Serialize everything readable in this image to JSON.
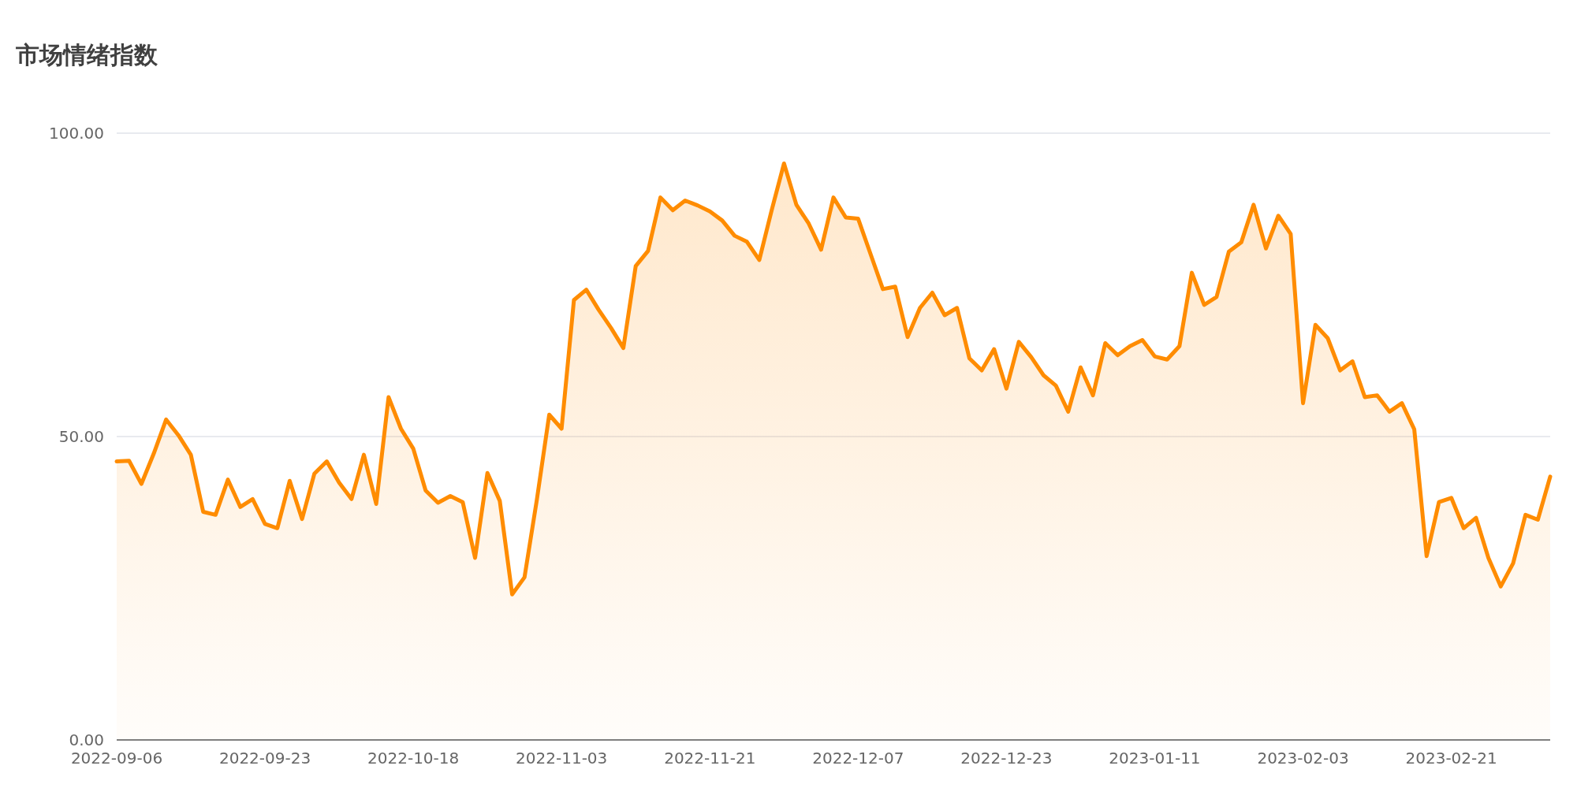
{
  "chart_data": {
    "type": "area",
    "title": "市场情绪指数",
    "categories": [
      "2022-09-06",
      null,
      null,
      null,
      null,
      null,
      null,
      null,
      null,
      null,
      null,
      null,
      "2022-09-23",
      null,
      null,
      null,
      null,
      null,
      null,
      null,
      null,
      null,
      null,
      null,
      "2022-10-18",
      null,
      null,
      null,
      null,
      null,
      null,
      null,
      null,
      null,
      null,
      null,
      "2022-11-03",
      null,
      null,
      null,
      null,
      null,
      null,
      null,
      null,
      null,
      null,
      null,
      "2022-11-21",
      null,
      null,
      null,
      null,
      null,
      null,
      null,
      null,
      null,
      null,
      null,
      "2022-12-07",
      null,
      null,
      null,
      null,
      null,
      null,
      null,
      null,
      null,
      null,
      null,
      "2022-12-23",
      null,
      null,
      null,
      null,
      null,
      null,
      null,
      null,
      null,
      null,
      null,
      "2023-01-11",
      null,
      null,
      null,
      null,
      null,
      null,
      null,
      null,
      null,
      null,
      null,
      "2023-02-03",
      null,
      null,
      null,
      null,
      null,
      null,
      null,
      null,
      null,
      null,
      null,
      "2023-02-21",
      null,
      null,
      null,
      null,
      null,
      null,
      null,
      null
    ],
    "series": [
      {
        "color": "#ff8c00",
        "values": [
          45.9,
          46.0,
          42.2,
          47.2,
          52.8,
          50.2,
          47.0,
          37.6,
          37.1,
          42.9,
          38.4,
          39.7,
          35.6,
          34.9,
          42.7,
          36.4,
          43.9,
          45.9,
          42.4,
          39.7,
          47.0,
          38.9,
          56.5,
          51.3,
          48.0,
          41.1,
          39.1,
          40.2,
          39.2,
          30.0,
          44.0,
          39.4,
          24.0,
          26.8,
          39.6,
          53.6,
          51.3,
          72.5,
          74.2,
          70.9,
          67.9,
          64.6,
          78.1,
          80.6,
          89.4,
          87.3,
          88.9,
          88.1,
          87.1,
          85.6,
          83.1,
          82.1,
          79.1,
          87.3,
          95.0,
          88.2,
          85.1,
          80.8,
          89.4,
          86.1,
          85.9,
          80.1,
          74.3,
          74.7,
          66.4,
          71.2,
          73.7,
          70.0,
          71.2,
          62.9,
          60.9,
          64.4,
          57.9,
          65.6,
          63.1,
          60.1,
          58.4,
          54.1,
          61.4,
          56.8,
          65.4,
          63.4,
          64.9,
          65.9,
          63.2,
          62.7,
          64.9,
          77.0,
          71.7,
          73.0,
          80.5,
          82.0,
          88.2,
          81.0,
          86.4,
          83.4,
          55.5,
          68.4,
          66.2,
          60.9,
          62.4,
          56.5,
          56.8,
          54.1,
          55.5,
          51.2,
          30.3,
          39.2,
          39.9,
          34.9,
          36.6,
          30.0,
          25.3,
          29.1,
          37.1,
          36.3,
          43.4
        ]
      }
    ],
    "ylim": [
      0,
      100
    ],
    "yticks": [
      {
        "value": 0,
        "label": "0.00"
      },
      {
        "value": 50,
        "label": "50.00"
      },
      {
        "value": 100,
        "label": "100.00"
      }
    ],
    "grid": "y"
  }
}
